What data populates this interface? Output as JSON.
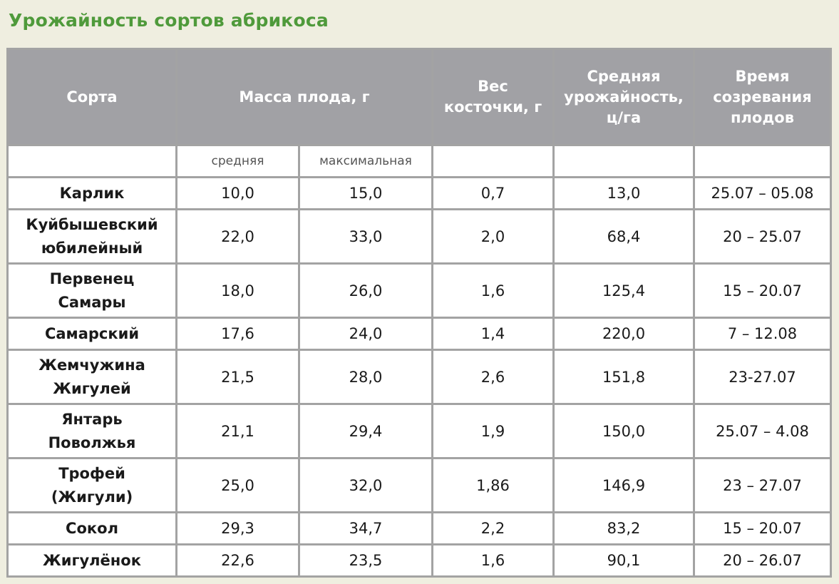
{
  "title": "Урожайность сортов абрикоса",
  "table": {
    "headers": {
      "variety": "Сорта",
      "mass": "Масса плода, г",
      "stone_line1": "Вес",
      "stone_line2": "косточки, г",
      "yield_line1": "Средняя",
      "yield_line2": "урожайность,",
      "yield_line3": "ц/га",
      "time_line1": "Время",
      "time_line2": "созревания",
      "time_line3": "плодов"
    },
    "subheaders": {
      "avg": "средняя",
      "max": "максимальная"
    },
    "rows": [
      {
        "name1": "Карлик",
        "name2": "",
        "avg": "10,0",
        "max": "15,0",
        "stone": "0,7",
        "yield": "13,0",
        "time": "25.07 – 05.08"
      },
      {
        "name1": "Куйбышевский",
        "name2": "юбилейный",
        "avg": "22,0",
        "max": "33,0",
        "stone": "2,0",
        "yield": "68,4",
        "time": "20 – 25.07"
      },
      {
        "name1": "Первенец",
        "name2": "Самары",
        "avg": "18,0",
        "max": "26,0",
        "stone": "1,6",
        "yield": "125,4",
        "time": "15 – 20.07"
      },
      {
        "name1": "Самарский",
        "name2": "",
        "avg": "17,6",
        "max": "24,0",
        "stone": "1,4",
        "yield": "220,0",
        "time": "7 – 12.08"
      },
      {
        "name1": "Жемчужина",
        "name2": "Жигулей",
        "avg": "21,5",
        "max": "28,0",
        "stone": "2,6",
        "yield": "151,8",
        "time": "23-27.07"
      },
      {
        "name1": "Янтарь",
        "name2": "Поволжья",
        "avg": "21,1",
        "max": "29,4",
        "stone": "1,9",
        "yield": "150,0",
        "time": "25.07 – 4.08"
      },
      {
        "name1": "Трофей",
        "name2": "(Жигули)",
        "avg": "25,0",
        "max": "32,0",
        "stone": "1,86",
        "yield": "146,9",
        "time": "23 – 27.07"
      },
      {
        "name1": "Сокол",
        "name2": "",
        "avg": "29,3",
        "max": "34,7",
        "stone": "2,2",
        "yield": "83,2",
        "time": "15 – 20.07"
      },
      {
        "name1": "Жигулёнок",
        "name2": "",
        "avg": "22,6",
        "max": "23,5",
        "stone": "1,6",
        "yield": "90,1",
        "time": "20 – 26.07"
      }
    ]
  }
}
